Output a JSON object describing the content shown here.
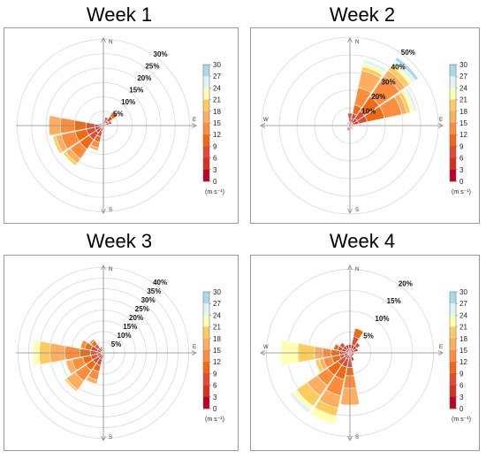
{
  "chart_data": [
    {
      "type": "rose",
      "title": "Week 1",
      "rings": [
        5,
        10,
        15,
        20,
        25,
        30
      ],
      "ring_labels": [
        "5%",
        "10%",
        "15%",
        "20%",
        "25%",
        "30%"
      ],
      "max_pct": 32,
      "compass": [
        "N",
        "E",
        "S"
      ],
      "colorbar": {
        "ticks": [
          "30",
          "27",
          "24",
          "21",
          "18",
          "15",
          "12",
          "9",
          "6",
          "3",
          "0"
        ],
        "unit": "(m s⁻¹)"
      },
      "petals": [
        {
          "dir": 270,
          "bands": [
            1,
            2,
            3,
            4,
            5,
            4
          ]
        },
        {
          "dir": 247.5,
          "bands": [
            1,
            2,
            3,
            4,
            5,
            2,
            1
          ]
        },
        {
          "dir": 225,
          "bands": [
            1,
            2,
            3,
            4,
            4,
            2,
            1
          ]
        },
        {
          "dir": 202.5,
          "bands": [
            1,
            1,
            2,
            2,
            2,
            1
          ]
        },
        {
          "dir": 180,
          "bands": [
            0.5,
            1
          ]
        },
        {
          "dir": 292.5,
          "bands": [
            0.5,
            1
          ]
        },
        {
          "dir": 315,
          "bands": [
            0.5,
            0.5
          ]
        },
        {
          "dir": 337.5,
          "bands": [
            0.5,
            0.5
          ]
        },
        {
          "dir": 0,
          "bands": [
            0.5
          ]
        },
        {
          "dir": 22.5,
          "bands": [
            1,
            1,
            1
          ]
        },
        {
          "dir": 45,
          "bands": [
            1,
            1,
            2,
            2
          ]
        },
        {
          "dir": 67.5,
          "bands": [
            1,
            1,
            1
          ]
        },
        {
          "dir": 90,
          "bands": [
            1
          ]
        },
        {
          "dir": 112.5,
          "bands": [
            0.5
          ]
        },
        {
          "dir": 135,
          "bands": [
            0.5
          ]
        },
        {
          "dir": 157.5,
          "bands": [
            0.5
          ]
        }
      ]
    },
    {
      "type": "rose",
      "title": "Week 2",
      "rings": [
        10,
        20,
        30,
        40,
        50
      ],
      "ring_labels": [
        "10%",
        "20%",
        "30%",
        "40%",
        "50%"
      ],
      "max_pct": 52,
      "compass": [
        "N",
        "W",
        "E",
        "S"
      ],
      "colorbar": {
        "ticks": [
          "30",
          "27",
          "24",
          "21",
          "18",
          "15",
          "12",
          "9",
          "6",
          "3",
          "0"
        ],
        "unit": "(m s⁻¹)"
      },
      "petals": [
        {
          "dir": 22.5,
          "bands": [
            2,
            2,
            3,
            5,
            10,
            10,
            2,
            2,
            2
          ]
        },
        {
          "dir": 45,
          "bands": [
            2,
            3,
            5,
            10,
            14,
            4,
            3,
            2,
            2,
            2
          ]
        },
        {
          "dir": 67.5,
          "bands": [
            2,
            3,
            5,
            10,
            10,
            3,
            2,
            2,
            2
          ]
        },
        {
          "dir": 0,
          "bands": [
            2,
            2,
            3
          ]
        },
        {
          "dir": 337.5,
          "bands": [
            1,
            1
          ]
        },
        {
          "dir": 315,
          "bands": [
            1,
            1
          ]
        },
        {
          "dir": 292.5,
          "bands": [
            1
          ]
        },
        {
          "dir": 270,
          "bands": [
            1
          ]
        },
        {
          "dir": 247.5,
          "bands": [
            1
          ]
        },
        {
          "dir": 225,
          "bands": [
            1,
            1
          ]
        },
        {
          "dir": 202.5,
          "bands": [
            1,
            2
          ]
        },
        {
          "dir": 180,
          "bands": [
            1,
            1
          ]
        },
        {
          "dir": 157.5,
          "bands": [
            1,
            1
          ]
        },
        {
          "dir": 135,
          "bands": [
            1,
            1
          ]
        },
        {
          "dir": 112.5,
          "bands": [
            1
          ]
        },
        {
          "dir": 90,
          "bands": [
            1,
            1
          ]
        }
      ]
    },
    {
      "type": "rose",
      "title": "Week 3",
      "rings": [
        5,
        10,
        15,
        20,
        25,
        30,
        35,
        40
      ],
      "ring_labels": [
        "5%",
        "10%",
        "15%",
        "20%",
        "25%",
        "30%",
        "35%",
        "40%"
      ],
      "max_pct": 43,
      "compass": [
        "N",
        "E",
        "S"
      ],
      "colorbar": {
        "ticks": [
          "30",
          "27",
          "24",
          "21",
          "18",
          "15",
          "12",
          "9",
          "6",
          "3",
          "0"
        ],
        "unit": "(m s⁻¹)"
      },
      "petals": [
        {
          "dir": 270,
          "bands": [
            1,
            2,
            3,
            5,
            7,
            7,
            5,
            3
          ]
        },
        {
          "dir": 247.5,
          "bands": [
            1,
            2,
            3,
            4,
            5,
            3
          ]
        },
        {
          "dir": 225,
          "bands": [
            1,
            2,
            3,
            4,
            6,
            5,
            1
          ]
        },
        {
          "dir": 202.5,
          "bands": [
            1,
            2,
            3,
            3,
            4,
            2
          ]
        },
        {
          "dir": 292.5,
          "bands": [
            1,
            2,
            3,
            3,
            2
          ]
        },
        {
          "dir": 315,
          "bands": [
            1,
            2,
            2,
            2,
            1
          ]
        },
        {
          "dir": 337.5,
          "bands": [
            1,
            1,
            1
          ]
        },
        {
          "dir": 0,
          "bands": [
            0.5
          ]
        },
        {
          "dir": 22.5,
          "bands": [
            0.5
          ]
        },
        {
          "dir": 45,
          "bands": [
            0.5
          ]
        },
        {
          "dir": 67.5,
          "bands": [
            0.5
          ]
        },
        {
          "dir": 90,
          "bands": [
            0.5
          ]
        },
        {
          "dir": 112.5,
          "bands": [
            0.5
          ]
        },
        {
          "dir": 135,
          "bands": [
            0.5
          ]
        },
        {
          "dir": 157.5,
          "bands": [
            0.5,
            0.5
          ]
        },
        {
          "dir": 180,
          "bands": [
            0.5,
            1
          ]
        }
      ]
    },
    {
      "type": "rose",
      "title": "Week 4",
      "rings": [
        5,
        10,
        15,
        20
      ],
      "ring_labels": [
        "5%",
        "10%",
        "15%",
        "20%"
      ],
      "max_pct": 22,
      "compass": [
        "N",
        "W",
        "E",
        "S"
      ],
      "colorbar": {
        "ticks": [
          "30",
          "27",
          "24",
          "21",
          "18",
          "15",
          "12",
          "9",
          "6",
          "3",
          "0"
        ],
        "unit": "(m s⁻¹)"
      },
      "petals": [
        {
          "dir": 202.5,
          "bands": [
            0.5,
            1,
            2,
            3,
            4,
            3,
            2,
            2
          ]
        },
        {
          "dir": 225,
          "bands": [
            0.5,
            1,
            2,
            3,
            3,
            3,
            3,
            1,
            1
          ]
        },
        {
          "dir": 180,
          "bands": [
            0.5,
            1,
            2,
            2,
            3,
            4
          ]
        },
        {
          "dir": 270,
          "bands": [
            0.5,
            1,
            1,
            2,
            2,
            2,
            4,
            4
          ]
        },
        {
          "dir": 247.5,
          "bands": [
            0.5,
            1,
            1,
            2,
            2,
            1,
            1
          ]
        },
        {
          "dir": 292.5,
          "bands": [
            1,
            1,
            1,
            1
          ]
        },
        {
          "dir": 315,
          "bands": [
            1,
            1,
            1
          ]
        },
        {
          "dir": 337.5,
          "bands": [
            1,
            1
          ]
        },
        {
          "dir": 0,
          "bands": [
            1,
            1
          ]
        },
        {
          "dir": 22.5,
          "bands": [
            1,
            1,
            2,
            2
          ]
        },
        {
          "dir": 45,
          "bands": [
            1,
            1,
            1
          ]
        },
        {
          "dir": 67.5,
          "bands": [
            1,
            1
          ]
        },
        {
          "dir": 90,
          "bands": [
            1
          ]
        },
        {
          "dir": 112.5,
          "bands": [
            1
          ]
        },
        {
          "dir": 135,
          "bands": [
            1
          ]
        },
        {
          "dir": 157.5,
          "bands": [
            1,
            1
          ]
        }
      ]
    }
  ],
  "colors": {
    "scale": [
      "#bd0026",
      "#d7301f",
      "#e34a33",
      "#f16913",
      "#fd8d3c",
      "#fdae61",
      "#fecc5c",
      "#ffffb2",
      "#e0f3f8",
      "#abd9e9",
      "#74add1",
      "#4575b4",
      "#313695"
    ]
  }
}
